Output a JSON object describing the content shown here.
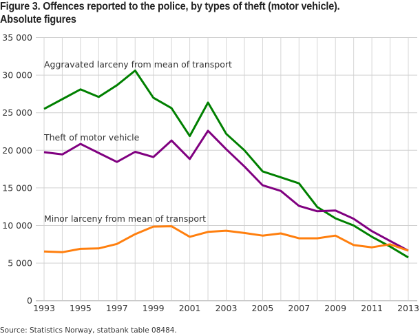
{
  "chart_data": {
    "type": "line",
    "title": "Figure 3. Offences reported to the police, by types of theft (motor vehicle). Absolute figures",
    "title_lines": [
      "Figure 3. Offences reported to the police, by types of theft (motor vehicle).",
      "Absolute figures"
    ],
    "source": "Source: Statistics Norway, statbank table 08484.",
    "x": [
      1993,
      1994,
      1995,
      1996,
      1997,
      1998,
      1999,
      2000,
      2001,
      2002,
      2003,
      2004,
      2005,
      2006,
      2007,
      2008,
      2009,
      2010,
      2011,
      2012,
      2013
    ],
    "x_tick_labels": [
      "1993",
      "1995",
      "1997",
      "1999",
      "2001",
      "2003",
      "2005",
      "2007",
      "2009",
      "2011",
      "2013"
    ],
    "y_tick_labels": [
      "0",
      "5 000",
      "10 000",
      "15 000",
      "20 000",
      "25 000",
      "30 000",
      "35 000"
    ],
    "ylim": [
      0,
      35000
    ],
    "xlim": [
      1993,
      2013
    ],
    "grid": true,
    "legend": "inline labels",
    "series": [
      {
        "name": "Aggravated larceny from mean of transport",
        "color": "#008000",
        "values": [
          25500,
          26800,
          28100,
          27100,
          28650,
          30600,
          27000,
          25600,
          21900,
          26350,
          22200,
          20000,
          17200,
          16400,
          15600,
          12450,
          10950,
          10000,
          8500,
          7200,
          5750
        ]
      },
      {
        "name": "Theft of motor vehicle",
        "color": "#800080",
        "values": [
          19750,
          19450,
          20850,
          19650,
          18450,
          19800,
          19100,
          21300,
          18850,
          22600,
          20150,
          17850,
          15350,
          14600,
          12600,
          11900,
          12000,
          10900,
          9250,
          7950,
          6650
        ]
      },
      {
        "name": "Minor larceny from mean of transport",
        "color": "#ff7f0e",
        "values": [
          6550,
          6450,
          6900,
          6950,
          7550,
          8850,
          9850,
          9900,
          8500,
          9150,
          9300,
          9000,
          8650,
          8950,
          8300,
          8300,
          8650,
          7400,
          7100,
          7500,
          6650
        ]
      }
    ]
  }
}
